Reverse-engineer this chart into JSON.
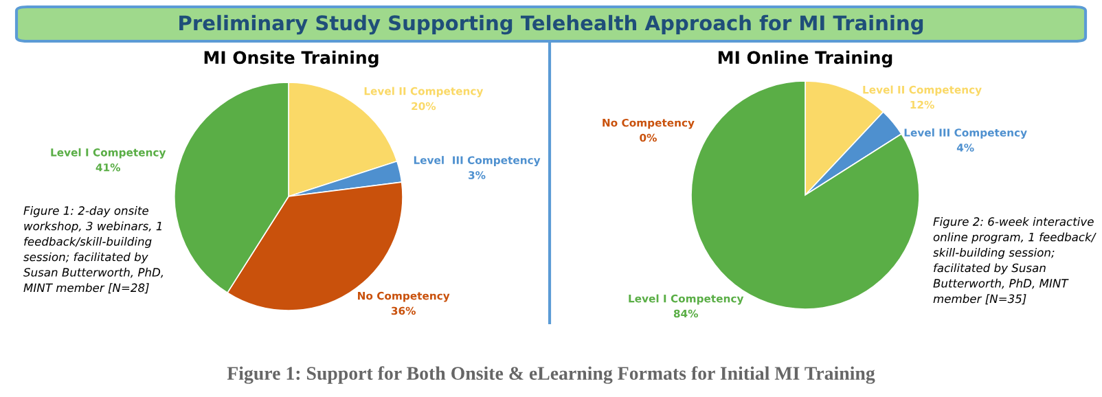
{
  "chart_data": [
    {
      "type": "pie",
      "title": "MI Onsite Training",
      "categories": [
        "Level II Competency",
        "Level  III Competency",
        "No Competency",
        "Level I Competency"
      ],
      "values": [
        20,
        3,
        36,
        41
      ],
      "colors": [
        "#fad967",
        "#4e90cf",
        "#c9510c",
        "#5aae46"
      ],
      "value_labels": [
        "20%",
        "3%",
        "36%",
        "41%"
      ],
      "annotations": [
        "Preliminary Study Supporting Telehealth Approach for MI Training",
        "Figure 1: 2-day onsite\nworkshop, 3 webinars, 1\nfeedback/skill-building\nsession; facilitated by\nSusan Butterworth, PhD,\nMINT member [N=28]"
      ]
    },
    {
      "type": "pie",
      "title": "MI Online Training",
      "categories": [
        "Level II Competency",
        "Level III Competency",
        "No Competency",
        "Level I Competency"
      ],
      "values": [
        12,
        4,
        0,
        84
      ],
      "colors": [
        "#fad967",
        "#4e90cf",
        "#c9510c",
        "#5aae46"
      ],
      "value_labels": [
        "12%",
        "4%",
        "0%",
        "84%"
      ],
      "annotations": [
        "Figure 2: 6-week interactive\nonline program, 1 feedback/\nskill-building session;\nfacilitated by Susan\nButterworth, PhD, MINT\nmember [N=35]",
        "Figure 1: Support for Both Onsite & eLearning Formats for Initial MI Training"
      ]
    }
  ]
}
